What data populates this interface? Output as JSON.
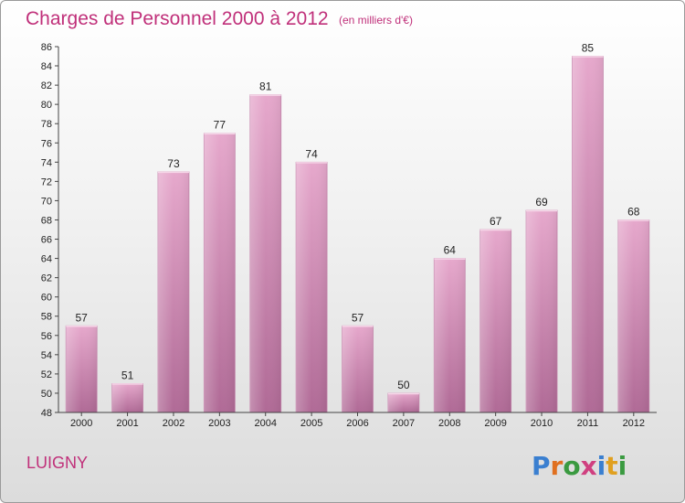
{
  "chart_data": {
    "type": "bar",
    "title": "Charges de Personnel 2000 à 2012",
    "subtitle": "(en milliers d'€)",
    "categories": [
      "2000",
      "2001",
      "2002",
      "2003",
      "2004",
      "2005",
      "2006",
      "2007",
      "2008",
      "2009",
      "2010",
      "2011",
      "2012"
    ],
    "values": [
      57,
      51,
      73,
      77,
      81,
      74,
      57,
      50,
      64,
      67,
      69,
      85,
      68
    ],
    "ylim": [
      48,
      86
    ],
    "yticks": [
      48,
      50,
      52,
      54,
      56,
      58,
      60,
      62,
      64,
      66,
      68,
      70,
      72,
      74,
      76,
      78,
      80,
      82,
      84,
      86
    ],
    "grid": false,
    "bar_color": "#d890b8",
    "title_color": "#c0307a"
  },
  "place_name": "LUIGNY",
  "logo": {
    "text": "Proxiti",
    "letter_colors": [
      "#3a7fd0",
      "#e07020",
      "#3a9a40",
      "#d04080",
      "#3a7fd0",
      "#e0a020",
      "#3a9a40"
    ]
  }
}
